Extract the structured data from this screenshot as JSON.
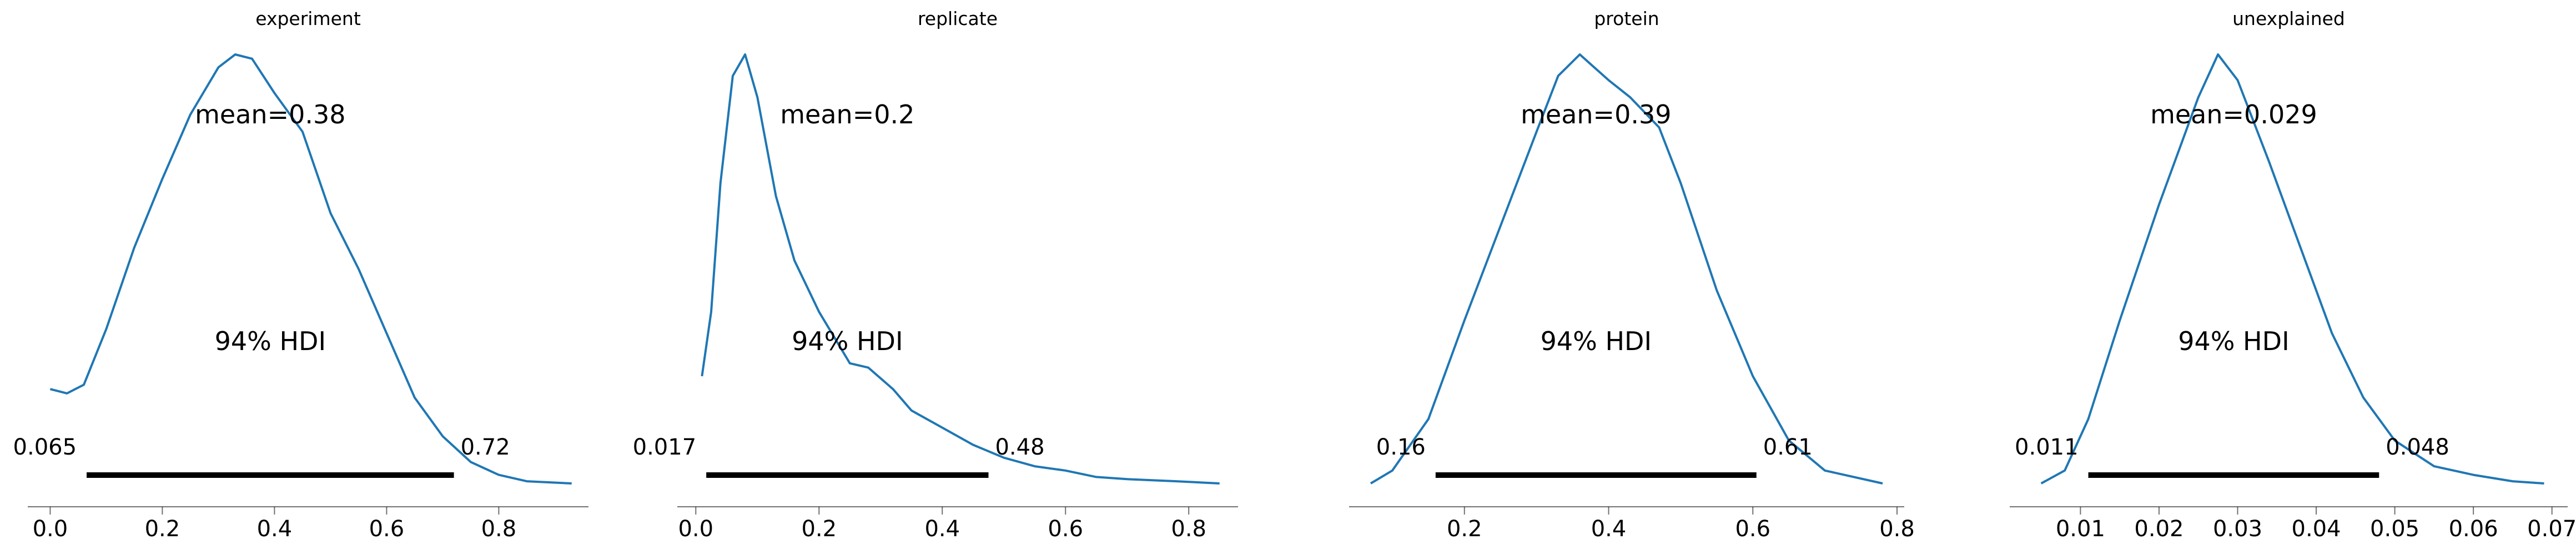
{
  "chart_data": [
    {
      "type": "line",
      "title": "experiment",
      "color": "#1f77b4",
      "mean_label": "mean=0.38",
      "hdi_label": "94% HDI",
      "hdi_low_label": "0.065",
      "hdi_high_label": "0.72",
      "hdi": [
        0.065,
        0.72
      ],
      "xlim": [
        -0.04,
        0.96
      ],
      "xticks": [
        0.0,
        0.2,
        0.4,
        0.6,
        0.8
      ],
      "xtick_labels": [
        "0.0",
        "0.2",
        "0.4",
        "0.6",
        "0.8"
      ],
      "x": [
        0.0,
        0.03,
        0.06,
        0.1,
        0.15,
        0.2,
        0.25,
        0.3,
        0.33,
        0.36,
        0.4,
        0.45,
        0.5,
        0.55,
        0.6,
        0.65,
        0.7,
        0.75,
        0.8,
        0.85,
        0.93
      ],
      "y": [
        0.22,
        0.21,
        0.23,
        0.36,
        0.55,
        0.71,
        0.86,
        0.97,
        1.0,
        0.99,
        0.91,
        0.82,
        0.63,
        0.5,
        0.35,
        0.2,
        0.11,
        0.05,
        0.02,
        0.005,
        0.0
      ]
    },
    {
      "type": "line",
      "title": "replicate",
      "color": "#1f77b4",
      "mean_label": "mean=0.2",
      "hdi_label": "94% HDI",
      "hdi_low_label": "0.017",
      "hdi_high_label": "0.48",
      "hdi": [
        0.017,
        0.475
      ],
      "xlim": [
        -0.03,
        0.88
      ],
      "xticks": [
        0.0,
        0.2,
        0.4,
        0.6,
        0.8
      ],
      "xtick_labels": [
        "0.0",
        "0.2",
        "0.4",
        "0.6",
        "0.8"
      ],
      "x": [
        0.01,
        0.025,
        0.04,
        0.06,
        0.08,
        0.1,
        0.13,
        0.16,
        0.2,
        0.25,
        0.28,
        0.32,
        0.35,
        0.4,
        0.45,
        0.5,
        0.55,
        0.6,
        0.65,
        0.7,
        0.78,
        0.85
      ],
      "y": [
        0.25,
        0.4,
        0.7,
        0.95,
        1.0,
        0.9,
        0.67,
        0.52,
        0.4,
        0.28,
        0.27,
        0.22,
        0.17,
        0.13,
        0.09,
        0.06,
        0.04,
        0.03,
        0.015,
        0.01,
        0.005,
        0.0
      ]
    },
    {
      "type": "line",
      "title": "protein",
      "color": "#1f77b4",
      "mean_label": "mean=0.39",
      "hdi_label": "94% HDI",
      "hdi_low_label": "0.16",
      "hdi_high_label": "0.61",
      "hdi": [
        0.16,
        0.605
      ],
      "xlim": [
        0.04,
        0.81
      ],
      "xticks": [
        0.2,
        0.4,
        0.6,
        0.8
      ],
      "xtick_labels": [
        "0.2",
        "0.4",
        "0.6",
        "0.8"
      ],
      "x": [
        0.07,
        0.1,
        0.15,
        0.2,
        0.25,
        0.3,
        0.33,
        0.36,
        0.38,
        0.4,
        0.43,
        0.47,
        0.5,
        0.55,
        0.6,
        0.65,
        0.7,
        0.78
      ],
      "y": [
        0.0,
        0.03,
        0.15,
        0.38,
        0.6,
        0.82,
        0.95,
        1.0,
        0.97,
        0.94,
        0.9,
        0.83,
        0.7,
        0.45,
        0.25,
        0.1,
        0.03,
        0.0
      ]
    },
    {
      "type": "line",
      "title": "unexplained",
      "color": "#1f77b4",
      "mean_label": "mean=0.029",
      "hdi_label": "94% HDI",
      "hdi_low_label": "0.011",
      "hdi_high_label": "0.048",
      "hdi": [
        0.011,
        0.048
      ],
      "xlim": [
        0.001,
        0.072
      ],
      "xticks": [
        0.01,
        0.02,
        0.03,
        0.04,
        0.05,
        0.06,
        0.07
      ],
      "xtick_labels": [
        "0.01",
        "0.02",
        "0.03",
        "0.04",
        "0.05",
        "0.06",
        "0.07"
      ],
      "x": [
        0.005,
        0.008,
        0.011,
        0.015,
        0.02,
        0.025,
        0.0275,
        0.03,
        0.034,
        0.038,
        0.042,
        0.046,
        0.05,
        0.055,
        0.06,
        0.065,
        0.069
      ],
      "y": [
        0.0,
        0.03,
        0.15,
        0.38,
        0.65,
        0.9,
        1.0,
        0.94,
        0.75,
        0.55,
        0.35,
        0.2,
        0.1,
        0.04,
        0.02,
        0.005,
        0.0
      ]
    }
  ]
}
